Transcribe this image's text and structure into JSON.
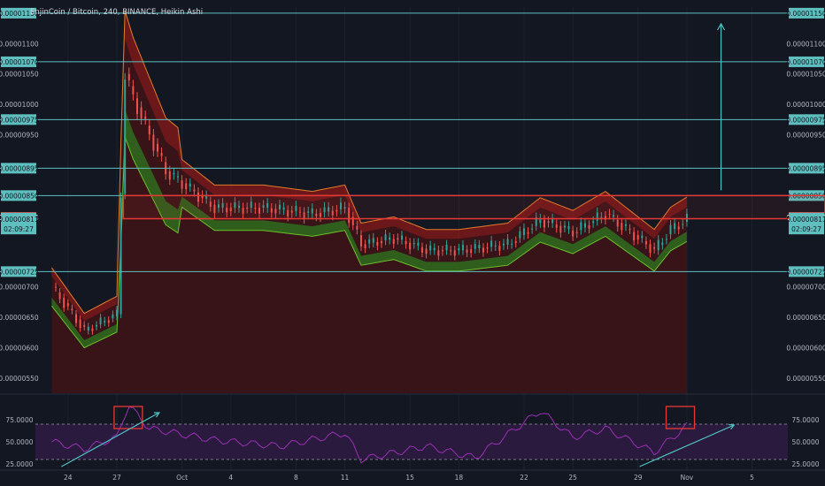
{
  "title": "EnjinCoin / Bitcoin, 240, BINANCE, Heikin Ashi",
  "colors": {
    "background": "#131722",
    "grid": "#1e222d",
    "bull": "#26a69a",
    "bear": "#ef5350",
    "hline": "#5fbfbf",
    "resistance": "#e53935",
    "upper_band": "#8b1a1a",
    "lower_band": "#2e6b1f",
    "rsi_line": "#9b2fb5",
    "rsi_fill": "#2a1a3d",
    "arrow": "#4fc3c3"
  },
  "price_axis": {
    "ticks": [
      "0.00001150",
      "0.00001100",
      "0.00001070",
      "0.00001050",
      "0.00001000",
      "0.00000975",
      "0.00000950",
      "0.00000895",
      "0.00000850",
      "0.00000814",
      "0.00000813",
      "0.00000811",
      "02:09:27",
      "0.00000725",
      "0.00000700",
      "0.00000650",
      "0.00000600",
      "0.00000550"
    ]
  },
  "horizontal_lines": [
    {
      "price": 1.15e-05,
      "label": "0.00001150"
    },
    {
      "price": 1.07e-05,
      "label": "0.00001070"
    },
    {
      "price": 9.75e-06,
      "label": "0.00000975"
    },
    {
      "price": 8.95e-06,
      "label": "0.00000895"
    },
    {
      "price": 8.5e-06,
      "label": "0.00000850"
    },
    {
      "price": 7.25e-06,
      "label": "0.00000725"
    }
  ],
  "price_tags": [
    {
      "price": 8.14e-06,
      "label": "0.00000814",
      "color": "#ef5350",
      "dark": false
    },
    {
      "price": 8.13e-06,
      "label": "0.00000813",
      "color": "#5fbfbf",
      "dark": true
    },
    {
      "price": 8.11e-06,
      "label": "0.00000811",
      "color": "#5fbfbf",
      "dark": true
    },
    {
      "price": 7.95e-06,
      "label": "02:09:27",
      "color": "#5fbfbf",
      "dark": true
    }
  ],
  "resistance_zone": {
    "top": 8.5e-06,
    "bottom": 8.12e-06
  },
  "x_axis": {
    "labels": [
      "24",
      "27",
      "Oct",
      "4",
      "8",
      "11",
      "15",
      "18",
      "22",
      "25",
      "29",
      "Nov",
      "5"
    ]
  },
  "rsi_axis": {
    "ticks": [
      "75.0000",
      "50.0000",
      "25.0000"
    ]
  },
  "chart_data": {
    "type": "candlestick",
    "title": "EnjinCoin / Bitcoin, 240, BINANCE, Heikin Ashi",
    "ylim": [
      5.25e-06,
      1.16e-05
    ],
    "close_path": [
      {
        "day": 23,
        "price": 7e-06
      },
      {
        "day": 25,
        "price": 6.28e-06
      },
      {
        "day": 27,
        "price": 6.55e-06
      },
      {
        "day": 27.5,
        "price": 1.05e-05
      },
      {
        "day": 28,
        "price": 1.01e-05
      },
      {
        "day": 29,
        "price": 9.5e-06
      },
      {
        "day": 30,
        "price": 8.9e-06
      },
      {
        "day": 33,
        "price": 8.3e-06
      },
      {
        "day": 36,
        "price": 8.3e-06
      },
      {
        "day": 39,
        "price": 8.2e-06
      },
      {
        "day": 41,
        "price": 8.3e-06
      },
      {
        "day": 42,
        "price": 7.7e-06
      },
      {
        "day": 44,
        "price": 7.8e-06
      },
      {
        "day": 46,
        "price": 7.6e-06
      },
      {
        "day": 48,
        "price": 7.6e-06
      },
      {
        "day": 51,
        "price": 7.7e-06
      },
      {
        "day": 53,
        "price": 8.1e-06
      },
      {
        "day": 55,
        "price": 7.9e-06
      },
      {
        "day": 57,
        "price": 8.2e-06
      },
      {
        "day": 59,
        "price": 7.8e-06
      },
      {
        "day": 60,
        "price": 7.6e-06
      },
      {
        "day": 61,
        "price": 7.95e-06
      },
      {
        "day": 62,
        "price": 8.11e-06
      }
    ],
    "last_price": 8.11e-06,
    "rsi": {
      "ylim": [
        20,
        100
      ],
      "overbought": 70,
      "oversold": 30,
      "values": [
        {
          "day": 23,
          "value": 50
        },
        {
          "day": 25,
          "value": 42
        },
        {
          "day": 27,
          "value": 55
        },
        {
          "day": 27.7,
          "value": 92
        },
        {
          "day": 29,
          "value": 65
        },
        {
          "day": 33,
          "value": 52
        },
        {
          "day": 37,
          "value": 45
        },
        {
          "day": 41,
          "value": 60
        },
        {
          "day": 42,
          "value": 30
        },
        {
          "day": 46,
          "value": 45
        },
        {
          "day": 49,
          "value": 32
        },
        {
          "day": 53,
          "value": 85
        },
        {
          "day": 55,
          "value": 55
        },
        {
          "day": 57,
          "value": 65
        },
        {
          "day": 60,
          "value": 38
        },
        {
          "day": 62,
          "value": 68
        }
      ]
    }
  }
}
